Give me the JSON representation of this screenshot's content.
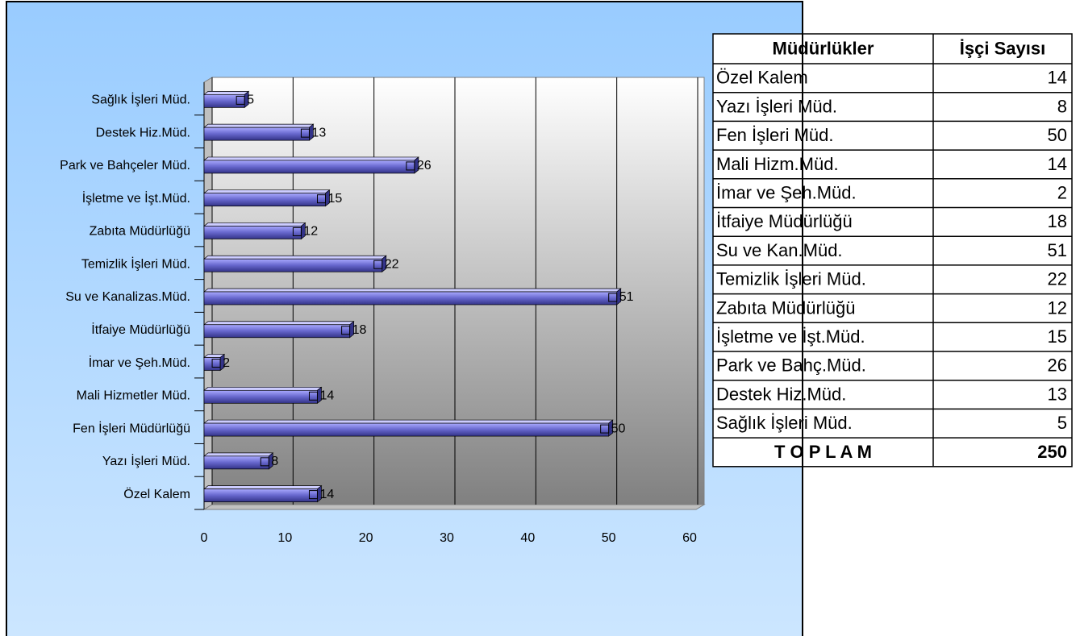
{
  "chart_data": {
    "type": "bar",
    "orientation": "horizontal",
    "categories": [
      "Özel Kalem",
      "Yazı İşleri Müd.",
      "Fen İşleri Müdürlüğü",
      "Mali Hizmetler Müd.",
      "İmar ve Şeh.Müd.",
      "İtfaiye Müdürlüğü",
      "Su ve Kanalizas.Müd.",
      "Temizlik İşleri Müd.",
      "Zabıta Müdürlüğü",
      "İşletme ve İşt.Müd.",
      "Park ve Bahçeler Müd.",
      "Destek Hiz.Müd.",
      "Sağlık İşleri Müd."
    ],
    "values": [
      14,
      8,
      50,
      14,
      2,
      18,
      51,
      22,
      12,
      15,
      26,
      13,
      5
    ],
    "color": "#6666cc",
    "xlim": [
      0,
      60
    ],
    "xticks": [
      0,
      10,
      20,
      30,
      40,
      50,
      60
    ],
    "grid": true
  },
  "table": {
    "header": [
      "Müdürlükler",
      "İşçi Sayısı"
    ],
    "rows": [
      [
        "Özel Kalem",
        14
      ],
      [
        "Yazı İşleri Müd.",
        8
      ],
      [
        "Fen İşleri Müd.",
        50
      ],
      [
        "Mali Hizm.Müd.",
        14
      ],
      [
        "İmar ve Şeh.Müd.",
        2
      ],
      [
        "İtfaiye Müdürlüğü",
        18
      ],
      [
        "Su ve Kan.Müd.",
        51
      ],
      [
        "Temizlik İşleri Müd.",
        22
      ],
      [
        "Zabıta Müdürlüğü",
        12
      ],
      [
        "İşletme ve İşt.Müd.",
        15
      ],
      [
        "Park ve Bahç.Müd.",
        26
      ],
      [
        "Destek Hiz.Müd.",
        13
      ],
      [
        "Sağlık İşleri Müd.",
        5
      ]
    ],
    "total": [
      "T O P L A M",
      250
    ]
  }
}
